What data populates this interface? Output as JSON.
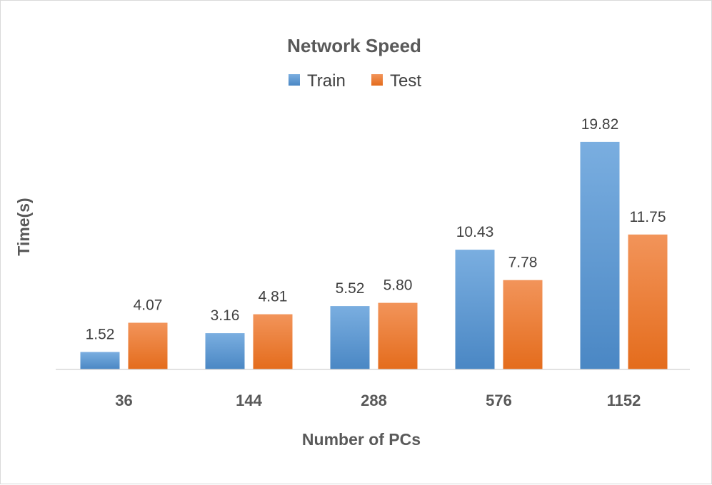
{
  "chart_data": {
    "type": "bar",
    "title": "Network Speed",
    "xlabel": "Number of PCs",
    "ylabel": "Time(s)",
    "categories": [
      "36",
      "144",
      "288",
      "576",
      "1152"
    ],
    "series": [
      {
        "name": "Train",
        "values": [
          1.52,
          3.16,
          5.52,
          10.43,
          19.82
        ],
        "labels": [
          "1.52",
          "3.16",
          "5.52",
          "10.43",
          "19.82"
        ],
        "color": "#5B9BD5",
        "color_light": "#7AAEE0",
        "color_dark": "#4A87C4"
      },
      {
        "name": "Test",
        "values": [
          4.07,
          4.81,
          5.8,
          7.78,
          11.75
        ],
        "labels": [
          "4.07",
          "4.81",
          "5.80",
          "7.78",
          "11.75"
        ],
        "color": "#ED7D31",
        "color_light": "#F2945A",
        "color_dark": "#E46C1C"
      }
    ],
    "ylim": [
      0,
      20
    ],
    "grid": false,
    "legend_position": "top-center"
  }
}
